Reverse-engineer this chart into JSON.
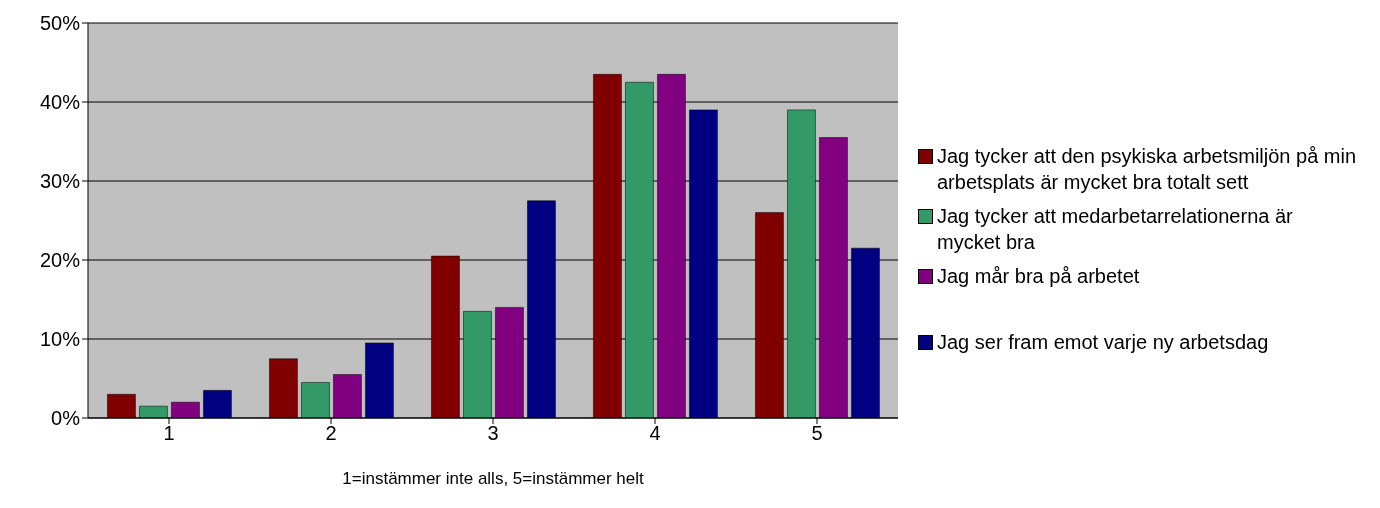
{
  "chart_data": {
    "type": "bar",
    "xlabel": "1=instämmer inte alls, 5=instämmer helt",
    "categories": [
      "1",
      "2",
      "3",
      "4",
      "5"
    ],
    "series": [
      {
        "name": "Jag tycker att den psykiska arbetsmiljön på min arbetsplats är mycket bra totalt sett",
        "color": "#800000",
        "values": [
          3,
          7.5,
          20.5,
          43.5,
          26
        ]
      },
      {
        "name": "Jag tycker att medarbetarrelationerna är mycket bra",
        "color": "#339966",
        "values": [
          1.5,
          4.5,
          13.5,
          42.5,
          39
        ]
      },
      {
        "name": "Jag mår bra på arbetet",
        "color": "#800080",
        "values": [
          2,
          5.5,
          14,
          43.5,
          35.5
        ]
      },
      {
        "name": "Jag ser fram emot varje ny arbetsdag",
        "color": "#000080",
        "values": [
          3.5,
          9.5,
          27.5,
          39,
          21.5
        ]
      }
    ],
    "ylim": [
      0,
      50
    ],
    "yticks": [
      {
        "value": 0,
        "label": "0%"
      },
      {
        "value": 10,
        "label": "10%"
      },
      {
        "value": 20,
        "label": "20%"
      },
      {
        "value": 30,
        "label": "30%"
      },
      {
        "value": 40,
        "label": "40%"
      },
      {
        "value": 50,
        "label": "50%"
      }
    ],
    "grid": "y",
    "legend": "right"
  }
}
